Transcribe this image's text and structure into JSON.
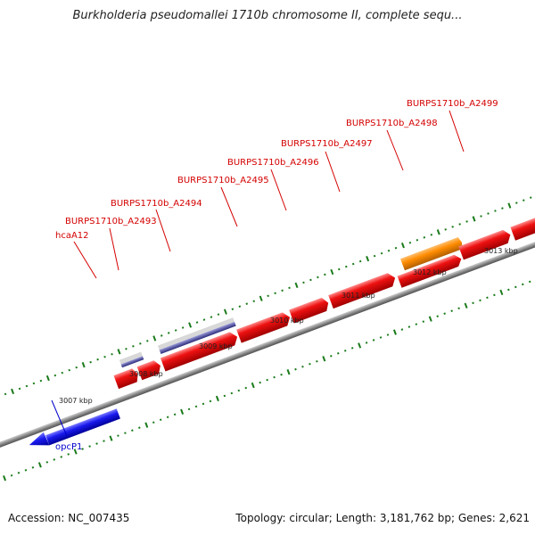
{
  "title": "Burkholderia pseudomallei 1710b chromosome II, complete sequ...",
  "footer": {
    "accession": "Accession: NC_007435",
    "summary": "Topology: circular; Length: 3,181,762 bp; Genes: 2,621"
  },
  "scale_labels": [
    "3007 kbp",
    "3008 kbp",
    "3009 kbp",
    "3010 kbp",
    "3011 kbp",
    "3012 kbp",
    "3013 kbp"
  ],
  "genes": [
    {
      "name": "hcaA12",
      "color": "#d40000"
    },
    {
      "name": "BURPS1710b_A2493",
      "color": "#d40000"
    },
    {
      "name": "BURPS1710b_A2494",
      "color": "#d40000"
    },
    {
      "name": "BURPS1710b_A2495",
      "color": "#d40000"
    },
    {
      "name": "BURPS1710b_A2496",
      "color": "#d40000"
    },
    {
      "name": "BURPS1710b_A2497",
      "color": "#d40000"
    },
    {
      "name": "BURPS1710b_A2498",
      "color": "#d40000"
    },
    {
      "name": "BURPS1710b_A2499",
      "color": "#d40000"
    },
    {
      "name": "opcP1",
      "color": "#0000cc"
    }
  ],
  "colors": {
    "forward_gene": "#ee1111",
    "reverse_gene": "#1a1aee",
    "highlight_gene": "#ff8c00",
    "rna_gene": "#8888bb",
    "backbone": "#8a8a8a",
    "tick": "#1a7a1a"
  }
}
